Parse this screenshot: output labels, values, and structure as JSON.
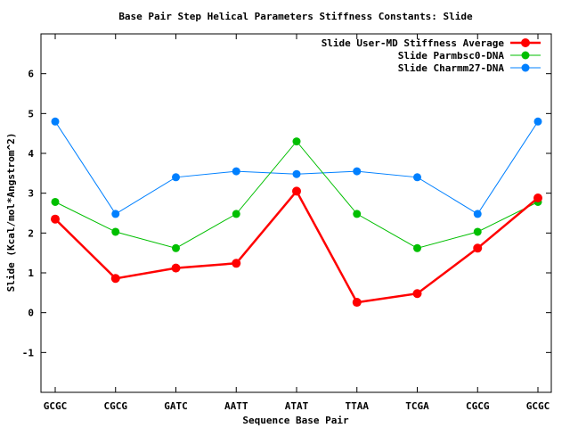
{
  "chart_data": {
    "type": "line",
    "title": "Base Pair Step Helical Parameters Stiffness Constants: Slide",
    "xlabel": "Sequence Base Pair",
    "ylabel": "Slide (Kcal/mol*Angstrom^2)",
    "categories": [
      "GCGC",
      "CGCG",
      "GATC",
      "AATT",
      "ATAT",
      "TTAA",
      "TCGA",
      "CGCG",
      "GCGC"
    ],
    "ylim": [
      -2,
      7
    ],
    "yticks": [
      "-1",
      "0",
      "1",
      "2",
      "3",
      "4",
      "5",
      "6"
    ],
    "legend_position": "top-right",
    "grid": false,
    "series": [
      {
        "name": "Slide User-MD Stiffness Average",
        "color": "#ff0000",
        "values": [
          2.35,
          0.86,
          1.12,
          1.24,
          3.05,
          0.26,
          0.48,
          1.62,
          2.88
        ]
      },
      {
        "name": "Slide Parmbsc0-DNA",
        "color": "#00bf00",
        "values": [
          2.78,
          2.03,
          1.62,
          2.48,
          4.3,
          2.48,
          1.62,
          2.03,
          2.78
        ]
      },
      {
        "name": "Slide Charmm27-DNA",
        "color": "#0080ff",
        "values": [
          4.8,
          2.48,
          3.4,
          3.55,
          3.48,
          3.55,
          3.4,
          2.48,
          4.8
        ]
      }
    ]
  }
}
